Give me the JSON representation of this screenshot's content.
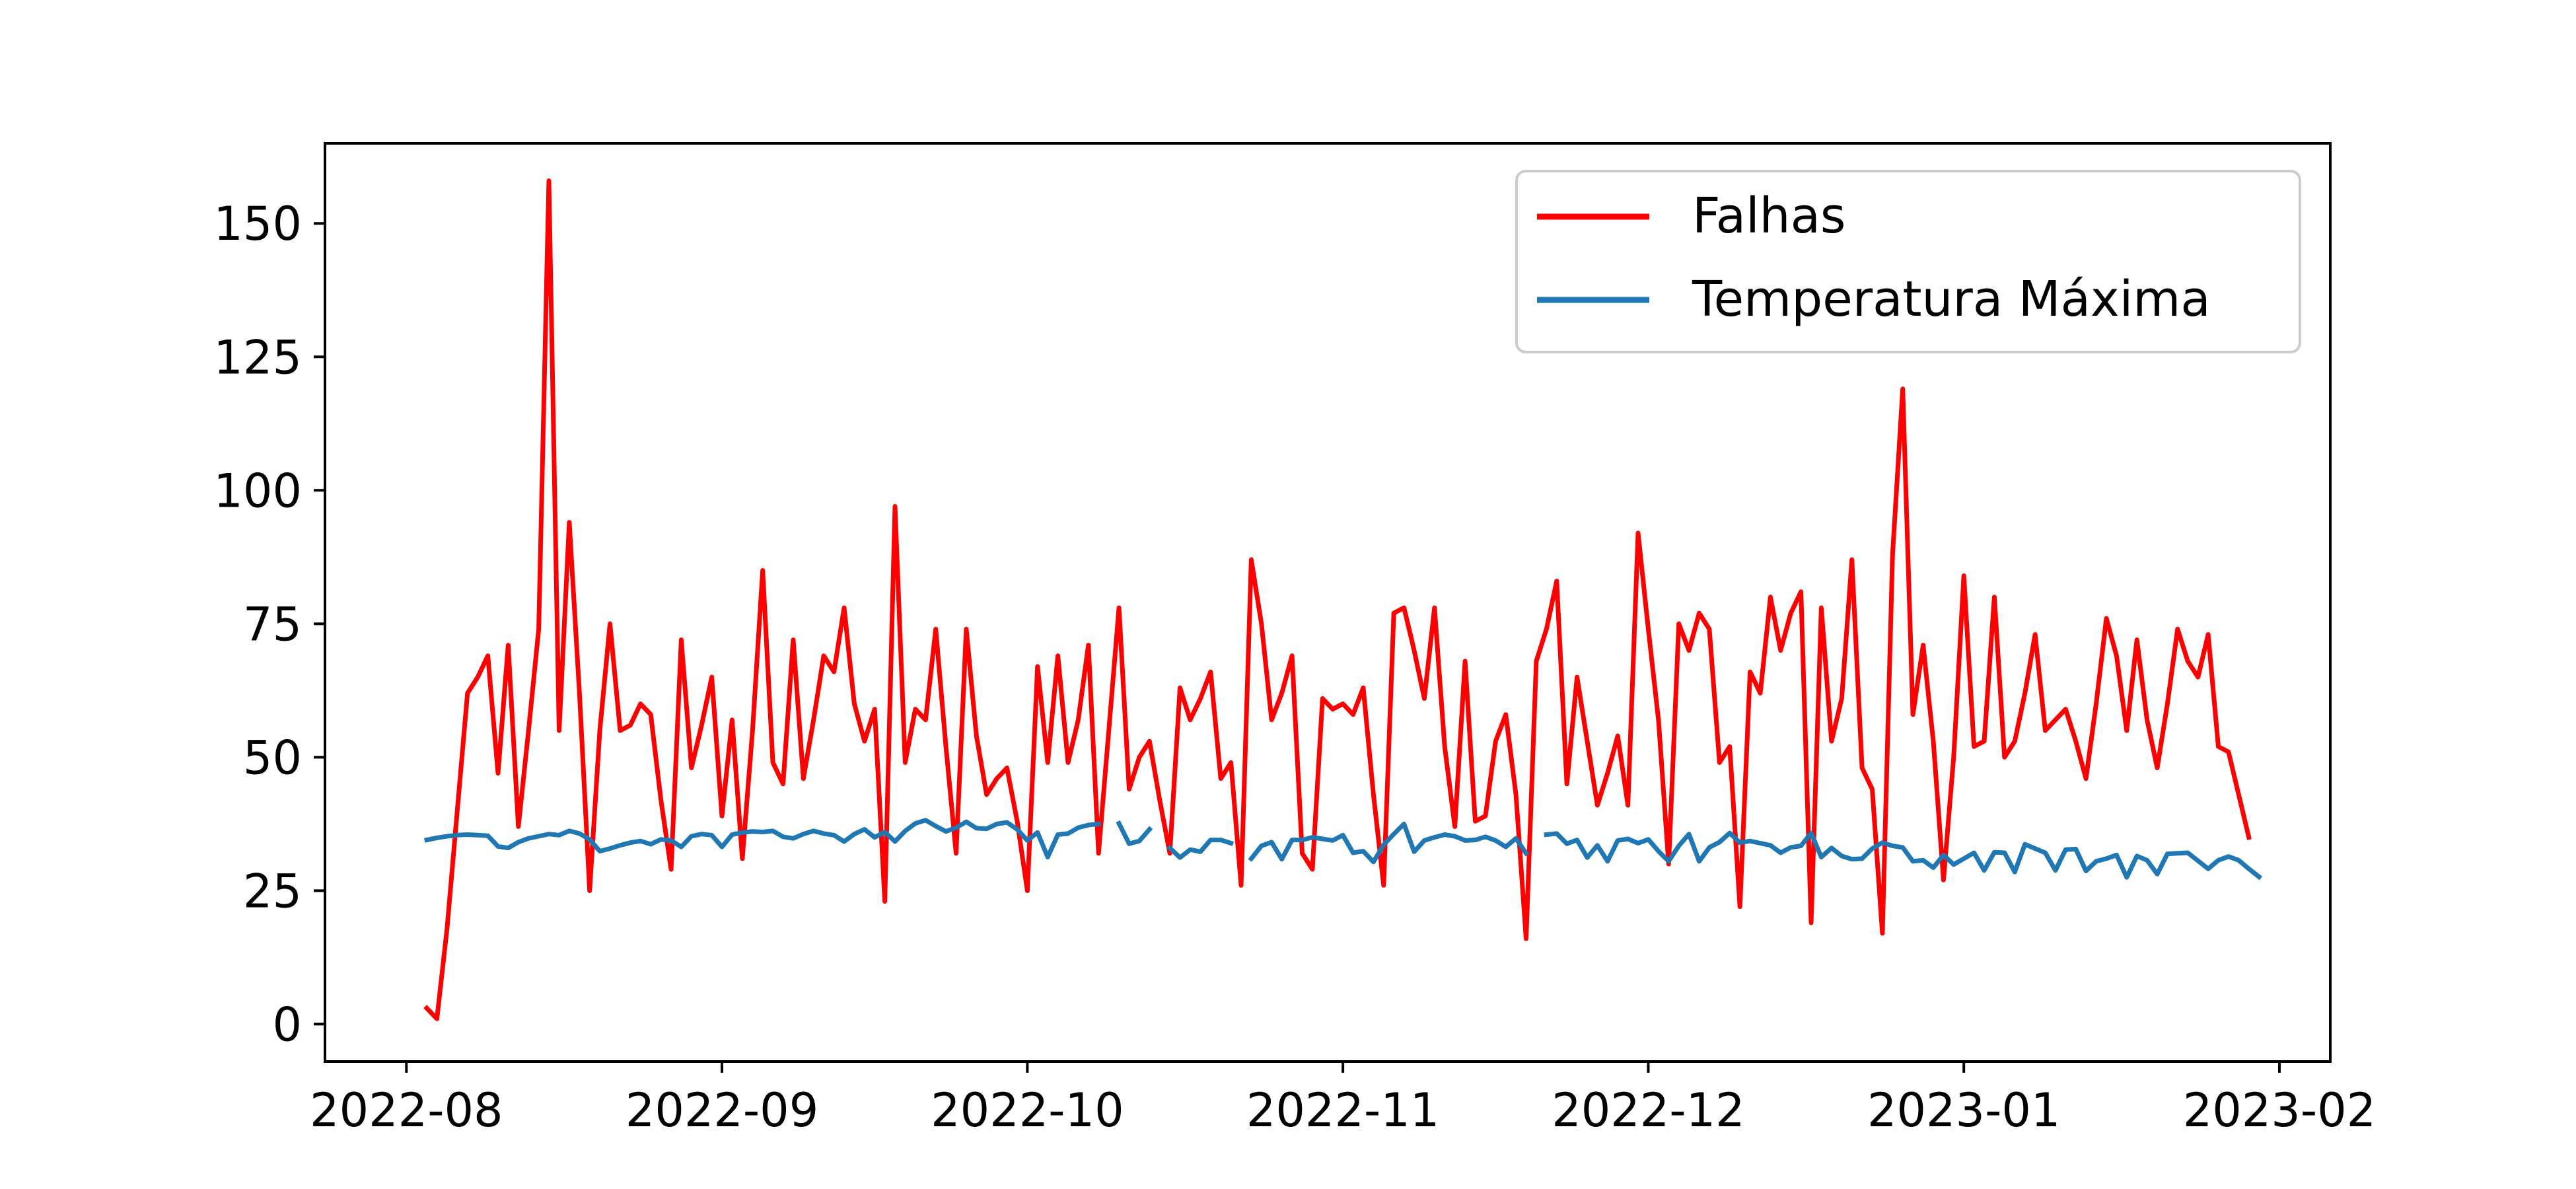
{
  "chart_data": {
    "type": "line",
    "x_axis": {
      "type": "date",
      "range": [
        "2022-07-24",
        "2023-02-06"
      ],
      "ticks": [
        "2022-08",
        "2022-09",
        "2022-10",
        "2022-11",
        "2022-12",
        "2023-01",
        "2023-02"
      ]
    },
    "y_axis": {
      "range": [
        -7,
        165
      ],
      "ticks": [
        "0",
        "25",
        "50",
        "75",
        "100",
        "125",
        "150"
      ]
    },
    "grid": false,
    "legend": {
      "position": "top-right",
      "entries": [
        "Falhas",
        "Temperatura Máxima"
      ]
    },
    "series": [
      {
        "name": "Falhas",
        "color": "#ff0000",
        "start_date": "2022-08-03",
        "values": [
          3,
          1,
          18,
          40,
          62,
          65,
          69,
          47,
          71,
          37,
          55,
          74,
          158,
          55,
          94,
          62,
          25,
          55,
          75,
          55,
          56,
          60,
          58,
          42,
          29,
          72,
          48,
          56,
          65,
          39,
          57,
          31,
          55,
          85,
          49,
          45,
          72,
          46,
          57,
          69,
          66,
          78,
          60,
          53,
          59,
          23,
          97,
          49,
          59,
          57,
          74,
          52,
          32,
          74,
          54,
          43,
          46,
          48,
          38,
          25,
          67,
          49,
          69,
          49,
          57,
          71,
          32,
          55,
          78,
          44,
          50,
          53,
          42,
          32,
          63,
          57,
          61,
          66,
          46,
          49,
          26,
          87,
          75,
          57,
          62,
          69,
          32,
          29,
          61,
          59,
          60,
          58,
          63,
          43,
          26,
          77,
          78,
          70,
          61,
          78,
          52,
          37,
          68,
          38,
          39,
          53,
          58,
          43,
          16,
          68,
          74,
          83,
          45,
          65,
          53,
          41,
          47,
          54,
          41,
          92,
          74,
          57,
          30,
          75,
          70,
          77,
          74,
          49,
          52,
          22,
          66,
          62,
          80,
          70,
          77,
          81,
          19,
          78,
          53,
          61,
          87,
          48,
          44,
          17,
          88,
          119,
          58,
          71,
          53,
          27,
          50,
          84,
          52,
          53,
          80,
          50,
          53,
          62,
          73,
          55,
          57,
          59,
          53,
          46,
          60,
          76,
          69,
          55,
          72,
          57,
          48,
          60,
          74,
          68,
          65,
          73,
          52,
          51,
          43,
          35
        ]
      },
      {
        "name": "Temperatura Máxima",
        "color": "#1f77b4",
        "start_date": "2022-08-03",
        "values": [
          34.5,
          34.9,
          35.2,
          35.4,
          35.5,
          35.4,
          35.3,
          33.3,
          33.0,
          34.1,
          34.8,
          35.2,
          35.6,
          35.4,
          36.2,
          35.7,
          34.6,
          32.4,
          32.9,
          33.5,
          34.0,
          34.3,
          33.7,
          34.6,
          34.4,
          33.2,
          35.2,
          35.6,
          35.4,
          33.2,
          35.5,
          35.9,
          36.1,
          36.0,
          36.2,
          35.1,
          34.8,
          35.6,
          36.2,
          35.7,
          35.4,
          34.2,
          35.6,
          36.5,
          35.0,
          36.0,
          34.2,
          36.2,
          37.6,
          38.2,
          37.1,
          36.1,
          36.8,
          37.9,
          36.7,
          36.6,
          37.5,
          37.8,
          36.5,
          34.4,
          35.9,
          31.3,
          35.5,
          35.7,
          36.8,
          37.3,
          37.5,
          null,
          37.6,
          33.8,
          34.3,
          36.5,
          null,
          33.0,
          31.2,
          32.7,
          32.3,
          34.5,
          34.5,
          33.9,
          null,
          31.0,
          33.4,
          34.1,
          30.9,
          34.5,
          34.5,
          35.0,
          34.7,
          34.4,
          35.4,
          32.1,
          32.4,
          30.4,
          33.6,
          35.6,
          37.5,
          32.3,
          34.4,
          35.0,
          35.5,
          35.2,
          34.4,
          34.5,
          35.1,
          34.4,
          33.2,
          34.8,
          32.0,
          null,
          35.5,
          35.7,
          33.8,
          34.5,
          31.2,
          33.5,
          30.5,
          34.4,
          34.7,
          33.9,
          34.6,
          32.4,
          30.5,
          33.4,
          35.6,
          30.5,
          33.1,
          34.1,
          35.8,
          34.0,
          34.3,
          33.9,
          33.5,
          32.1,
          33.1,
          33.4,
          35.8,
          31.3,
          33.0,
          31.5,
          30.9,
          31.0,
          32.9,
          34.0,
          33.4,
          33.1,
          30.5,
          30.7,
          29.3,
          31.7,
          29.9,
          31.0,
          32.1,
          28.8,
          32.2,
          32.1,
          28.5,
          33.7,
          32.9,
          32.1,
          28.8,
          32.7,
          32.8,
          28.7,
          30.5,
          31.0,
          31.7,
          27.5,
          31.5,
          30.7,
          28.1,
          31.9,
          32.0,
          32.1,
          30.6,
          29.1,
          30.7,
          31.4,
          30.7,
          29.1,
          27.6
        ]
      }
    ]
  }
}
